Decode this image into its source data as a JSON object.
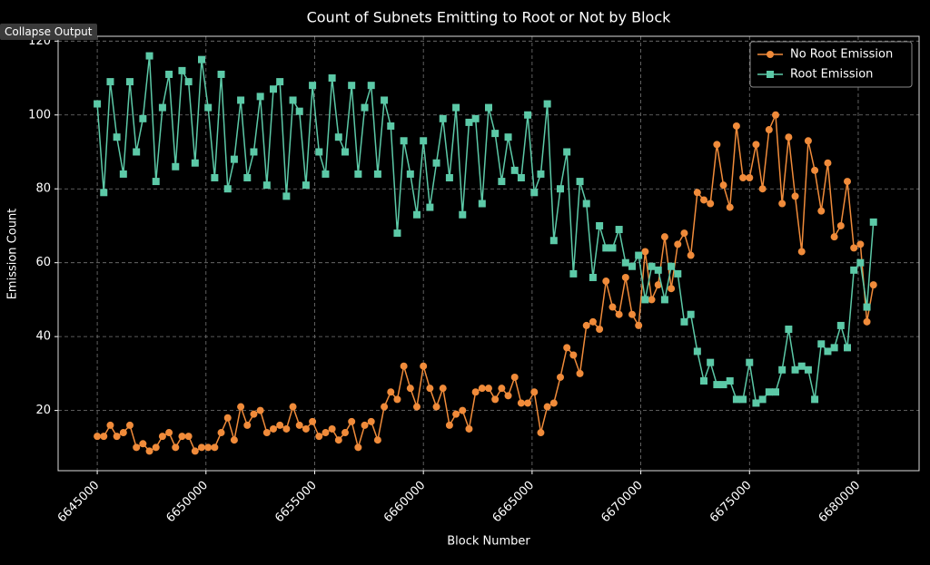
{
  "ui": {
    "button": "Collapse Output"
  },
  "chart_data": {
    "type": "line",
    "title": "Count of Subnets Emitting to Root or Not by Block",
    "xlabel": "Block Number",
    "ylabel": "Emission Count",
    "x": [
      6645000,
      6645300,
      6645600,
      6645900,
      6646200,
      6646500,
      6646800,
      6647100,
      6647400,
      6647700,
      6648000,
      6648300,
      6648600,
      6648900,
      6649200,
      6649500,
      6649800,
      6650100,
      6650400,
      6650700,
      6651000,
      6651300,
      6651600,
      6651900,
      6652200,
      6652500,
      6652800,
      6653100,
      6653400,
      6653700,
      6654000,
      6654300,
      6654600,
      6654900,
      6655200,
      6655500,
      6655800,
      6656100,
      6656400,
      6656700,
      6657000,
      6657300,
      6657600,
      6657900,
      6658200,
      6658500,
      6658800,
      6659100,
      6659400,
      6659700,
      6660000,
      6660300,
      6660600,
      6660900,
      6661200,
      6661500,
      6661800,
      6662100,
      6662400,
      6662700,
      6663000,
      6663300,
      6663600,
      6663900,
      6664200,
      6664500,
      6664800,
      6665100,
      6665400,
      6665700,
      6666000,
      6666300,
      6666600,
      6666900,
      6667200,
      6667500,
      6667800,
      6668100,
      6668400,
      6668700,
      6669000,
      6669300,
      6669600,
      6669900,
      6670200,
      6670500,
      6670800,
      6671100,
      6671400,
      6671700,
      6672000,
      6672300,
      6672600,
      6672900,
      6673200,
      6673500,
      6673800,
      6674100,
      6674400,
      6674700,
      6675000,
      6675300,
      6675600,
      6675900,
      6676200,
      6676500,
      6676800,
      6677100,
      6677400,
      6677700,
      6678000,
      6678300,
      6678600,
      6678900,
      6679200,
      6679500,
      6679800,
      6680100,
      6680400,
      6680700
    ],
    "series": [
      {
        "name": "No Root Emission",
        "color": "#f08b3a",
        "marker": "circle",
        "values": [
          13,
          13,
          16,
          13,
          14,
          16,
          10,
          11,
          9,
          10,
          13,
          14,
          10,
          13,
          13,
          9,
          10,
          10,
          10,
          14,
          18,
          12,
          21,
          16,
          19,
          20,
          14,
          15,
          16,
          15,
          21,
          16,
          15,
          17,
          13,
          14,
          15,
          12,
          14,
          17,
          10,
          16,
          17,
          12,
          21,
          25,
          23,
          32,
          26,
          21,
          32,
          26,
          21,
          26,
          16,
          19,
          20,
          15,
          25,
          26,
          26,
          23,
          26,
          24,
          29,
          22,
          22,
          25,
          14,
          21,
          22,
          29,
          37,
          35,
          30,
          43,
          44,
          42,
          55,
          48,
          46,
          56,
          46,
          43,
          63,
          50,
          54,
          67,
          53,
          65,
          68,
          62,
          79,
          77,
          76,
          92,
          81,
          75,
          97,
          83,
          83,
          92,
          80,
          96,
          100,
          76,
          94,
          78,
          63,
          93,
          85,
          74,
          87,
          67,
          70,
          82,
          64,
          65,
          44,
          54
        ]
      },
      {
        "name": "Root Emission",
        "color": "#5cc9a7",
        "marker": "square",
        "values": [
          103,
          79,
          109,
          94,
          84,
          109,
          90,
          99,
          116,
          82,
          102,
          111,
          86,
          112,
          109,
          87,
          115,
          102,
          83,
          111,
          80,
          88,
          104,
          83,
          90,
          105,
          81,
          107,
          109,
          78,
          104,
          101,
          81,
          108,
          90,
          84,
          110,
          94,
          90,
          108,
          84,
          102,
          108,
          84,
          104,
          97,
          68,
          93,
          84,
          73,
          93,
          75,
          87,
          99,
          83,
          102,
          73,
          98,
          99,
          76,
          102,
          95,
          82,
          94,
          85,
          83,
          100,
          79,
          84,
          103,
          66,
          80,
          90,
          57,
          82,
          76,
          56,
          70,
          64,
          64,
          69,
          60,
          59,
          62,
          50,
          59,
          58,
          50,
          59,
          57,
          44,
          46,
          36,
          28,
          33,
          27,
          27,
          28,
          23,
          23,
          33,
          22,
          23,
          25,
          25,
          31,
          42,
          31,
          32,
          31,
          23,
          38,
          36,
          37,
          43,
          37,
          58,
          60,
          48,
          71
        ]
      }
    ],
    "xlim": [
      6643200,
      6682800
    ],
    "ylim": [
      3.7,
      121.3
    ],
    "xticks": [
      6645000,
      6650000,
      6655000,
      6660000,
      6665000,
      6670000,
      6675000,
      6680000
    ],
    "yticks": [
      20,
      40,
      60,
      80,
      100,
      120
    ],
    "grid": true,
    "legend": "upper right"
  }
}
